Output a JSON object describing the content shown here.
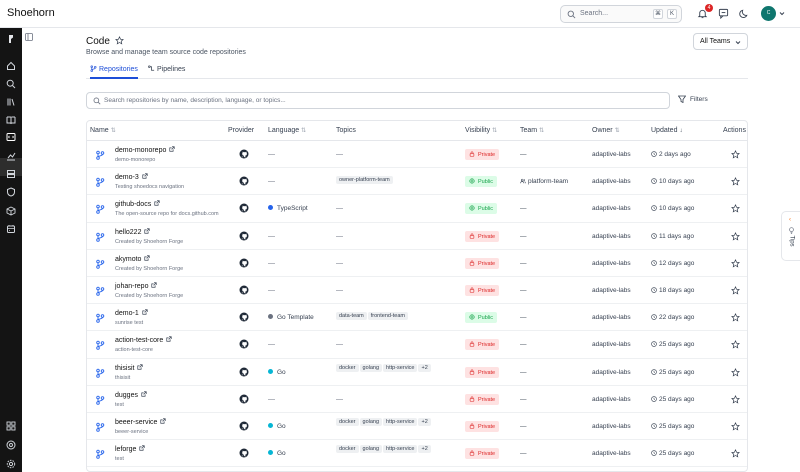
{
  "app": {
    "title": "Shoehorn"
  },
  "topbar": {
    "search_placeholder": "Search...",
    "kbd": [
      "⌘",
      "K"
    ],
    "notification_count": "4",
    "avatar_initials": "C"
  },
  "page": {
    "title": "Code",
    "subtitle": "Browse and manage team source code repositories",
    "team_filter": "All Teams",
    "tabs": [
      {
        "label": "Repositories",
        "active": true,
        "icon": "git-branch-icon"
      },
      {
        "label": "Pipelines",
        "active": false,
        "icon": "pipeline-icon"
      }
    ],
    "search_placeholder": "Search repositories by name, description, language, or topics...",
    "filters_label": "Filters"
  },
  "table": {
    "headers": {
      "name": "Name",
      "provider": "Provider",
      "language": "Language",
      "topics": "Topics",
      "visibility": "Visibility",
      "team": "Team",
      "owner": "Owner",
      "updated": "Updated",
      "actions": "Actions"
    },
    "rows": [
      {
        "name": "demo-monorepo",
        "desc": "demo-monorepo",
        "language": "—",
        "lang_color": "",
        "topics": [],
        "visibility": "Private",
        "team": "—",
        "owner": "adaptive-labs",
        "updated": "2 days ago"
      },
      {
        "name": "demo-3",
        "desc": "Testing shoedocs navigation",
        "language": "—",
        "lang_color": "",
        "topics": [
          "owner-platform-team"
        ],
        "visibility": "Public",
        "team": "platform-team",
        "owner": "adaptive-labs",
        "updated": "10 days ago"
      },
      {
        "name": "github-docs",
        "desc": "The open-source repo for docs.github.com",
        "language": "TypeScript",
        "lang_color": "#2563eb",
        "topics": [],
        "visibility": "Public",
        "team": "—",
        "owner": "adaptive-labs",
        "updated": "10 days ago"
      },
      {
        "name": "hello222",
        "desc": "Created by Shoehorn Forge",
        "language": "—",
        "lang_color": "",
        "topics": [],
        "visibility": "Private",
        "team": "—",
        "owner": "adaptive-labs",
        "updated": "11 days ago"
      },
      {
        "name": "akymoto",
        "desc": "Created by Shoehorn Forge",
        "language": "—",
        "lang_color": "",
        "topics": [],
        "visibility": "Private",
        "team": "—",
        "owner": "adaptive-labs",
        "updated": "12 days ago"
      },
      {
        "name": "johan-repo",
        "desc": "Created by Shoehorn Forge",
        "language": "—",
        "lang_color": "",
        "topics": [],
        "visibility": "Private",
        "team": "—",
        "owner": "adaptive-labs",
        "updated": "18 days ago"
      },
      {
        "name": "demo-1",
        "desc": "sunrise test",
        "language": "Go Template",
        "lang_color": "#6b7280",
        "topics": [
          "data-team",
          "frontend-team"
        ],
        "visibility": "Public",
        "team": "—",
        "owner": "adaptive-labs",
        "updated": "22 days ago"
      },
      {
        "name": "action-test-core",
        "desc": "action-test-core",
        "language": "—",
        "lang_color": "",
        "topics": [],
        "visibility": "Private",
        "team": "—",
        "owner": "adaptive-labs",
        "updated": "25 days ago"
      },
      {
        "name": "thisisit",
        "desc": "thisisit",
        "language": "Go",
        "lang_color": "#06b6d4",
        "topics": [
          "docker",
          "golang",
          "http-service",
          "+2"
        ],
        "visibility": "Private",
        "team": "—",
        "owner": "adaptive-labs",
        "updated": "25 days ago"
      },
      {
        "name": "dugges",
        "desc": "test",
        "language": "—",
        "lang_color": "",
        "topics": [],
        "visibility": "Private",
        "team": "—",
        "owner": "adaptive-labs",
        "updated": "25 days ago"
      },
      {
        "name": "beeer-service",
        "desc": "beeer-service",
        "language": "Go",
        "lang_color": "#06b6d4",
        "topics": [
          "docker",
          "golang",
          "http-service",
          "+2"
        ],
        "visibility": "Private",
        "team": "—",
        "owner": "adaptive-labs",
        "updated": "25 days ago"
      },
      {
        "name": "leforge",
        "desc": "test",
        "language": "Go",
        "lang_color": "#06b6d4",
        "topics": [
          "docker",
          "golang",
          "http-service",
          "+2"
        ],
        "visibility": "Private",
        "team": "—",
        "owner": "adaptive-labs",
        "updated": "25 days ago"
      },
      {
        "name": "",
        "desc": "",
        "language": "",
        "lang_color": "",
        "topics": [],
        "visibility": "",
        "team": "",
        "owner": "",
        "updated": ""
      }
    ]
  },
  "tips": {
    "label": "Tips"
  }
}
